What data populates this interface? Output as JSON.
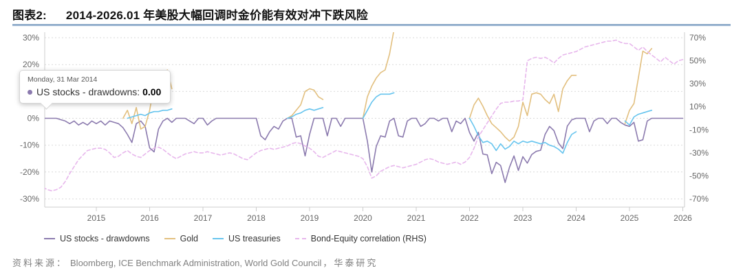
{
  "title": {
    "prefix": "图表2:",
    "text": "2014-2026.01 年美股大幅回调时金价能有效对冲下跌风险"
  },
  "tooltip": {
    "date": "Monday, 31 Mar 2014",
    "series_label": "US stocks - drawdowns:",
    "value": "0.00"
  },
  "legend": {
    "items": [
      {
        "label": "US stocks - drawdowns",
        "color_key": "us_stocks",
        "dash": false
      },
      {
        "label": "Gold",
        "color_key": "gold",
        "dash": false
      },
      {
        "label": "US treasuries",
        "color_key": "us_treasuries",
        "dash": false
      },
      {
        "label": "Bond-Equity correlation (RHS)",
        "color_key": "bond_equity",
        "dash": true
      }
    ]
  },
  "source": {
    "label": "资料来源：",
    "agencies": "Bloomberg, ICE Benchmark Administration, World Gold Council",
    "suffix": "，华泰研究"
  },
  "colors": {
    "us_stocks": "#8b7aae",
    "gold": "#e2bf7e",
    "us_treasuries": "#66c4ee",
    "bond_equity": "#e7b6ec",
    "grid": "#d9d9d9",
    "axis_line": "#cccccc",
    "axis_text": "#666666"
  },
  "chart_data": {
    "type": "line",
    "title": "2014-2026.01 年美股大幅回调时金价能有效对冲下跌风险",
    "x_axis": {
      "unit": "monthly",
      "start": "2014-01",
      "end": "2026-01",
      "years": [
        2015,
        2016,
        2017,
        2018,
        2019,
        2020,
        2021,
        2022,
        2023,
        2024,
        2025,
        2026
      ]
    },
    "left_axis": {
      "range": [
        -30,
        30
      ],
      "values": [
        30,
        20,
        10,
        0,
        -10,
        -20,
        -30
      ],
      "labels": [
        "30%",
        "20%",
        "10%",
        "0%",
        "-10%",
        "-20%",
        "-30%"
      ]
    },
    "right_axis": {
      "range": [
        -70,
        70
      ],
      "values": [
        70,
        50,
        30,
        10,
        -10,
        -30,
        -50,
        -70
      ],
      "labels": [
        "70%",
        "50%",
        "30%",
        "10%",
        "-10%",
        "-30%",
        "-50%",
        "-70%"
      ]
    },
    "grid": "dotted-horizontal",
    "legend_position": "bottom-left",
    "series": [
      {
        "name": "US stocks - drawdowns",
        "slug": "us-stocks-drawdowns",
        "axis": "left",
        "dash": false,
        "color_key": "us_stocks",
        "segments": [
          {
            "start_index": 0,
            "start_month": "2014-01",
            "values": [
              0,
              0,
              0,
              0,
              -0.5,
              -1,
              -2,
              -1,
              -2.5,
              -1.5,
              -2.5,
              -1,
              -2,
              -1,
              -2.5,
              -1,
              -1.5,
              -2,
              -3.5,
              -6,
              -9,
              -2,
              -1,
              -3,
              -11,
              -12.5,
              -4,
              -1,
              0,
              -1.5,
              0,
              0,
              0,
              -1,
              -2,
              0,
              0,
              -2.5,
              -1,
              0,
              0,
              0,
              0,
              0,
              0,
              0,
              0,
              0,
              0,
              -6.5,
              -8,
              -5,
              -3,
              -4,
              -1,
              0,
              0,
              -7,
              -6.5,
              -14,
              -6,
              0,
              0,
              0,
              -6.5,
              0,
              0,
              -3,
              0,
              0,
              0,
              0,
              0,
              -8.5,
              -20,
              -10.5,
              -6.5,
              -7,
              -1,
              0,
              -6.5,
              -7,
              -1,
              0,
              0,
              -3,
              -2,
              0,
              0,
              -1,
              0,
              0,
              -5,
              -1,
              -2,
              0,
              -5.3,
              -8.5,
              -5.2,
              -13.3,
              -13.6,
              -20.6,
              -16.4,
              -17.6,
              -23.9,
              -18.2,
              -14,
              -19.4,
              -14.3,
              -16.7,
              -13.5,
              -12.3,
              -11.9,
              -6,
              -3,
              -4.6,
              -9.2,
              -11.3,
              -2.9,
              -0.6,
              0,
              0,
              0,
              -5,
              -1,
              0,
              0,
              -2,
              0,
              0,
              -1.5,
              -2.5,
              -3,
              -1.5,
              -8.5,
              -8,
              -1,
              0,
              0,
              0,
              0,
              0,
              0,
              0,
              0
            ]
          }
        ]
      },
      {
        "name": "Gold",
        "slug": "gold",
        "axis": "left",
        "dash": false,
        "color_key": "gold",
        "segments": [
          {
            "start_index": 18,
            "start_month": "2015-07",
            "values": [
              0,
              3,
              -2,
              4,
              -4,
              -3,
              3,
              12,
              13,
              17,
              18,
              11
            ]
          },
          {
            "start_index": 55,
            "start_month": "2018-08",
            "values": [
              0,
              1,
              3,
              5,
              10,
              11,
              10.5,
              8,
              7
            ]
          },
          {
            "start_index": 72,
            "start_month": "2020-01",
            "values": [
              0,
              8,
              12,
              15,
              17,
              18,
              24,
              33
            ]
          },
          {
            "start_index": 96,
            "start_month": "2022-01",
            "values": [
              0,
              5,
              7.5,
              4.5,
              1,
              -2,
              -3.5,
              -5,
              -7,
              -8.5,
              -7,
              -3,
              6,
              1,
              9,
              9.5,
              9,
              7,
              5.5,
              9,
              2.5,
              11,
              14,
              16,
              16
            ]
          },
          {
            "start_index": 131,
            "start_month": "2024-12",
            "values": [
              -2,
              3,
              5.5,
              15,
              25,
              24,
              26
            ]
          }
        ]
      },
      {
        "name": "US treasuries",
        "slug": "us-treasuries",
        "axis": "left",
        "dash": false,
        "color_key": "us_treasuries",
        "segments": [
          {
            "start_index": 19,
            "start_month": "2015-08",
            "values": [
              0,
              0.5,
              1,
              1.5,
              1,
              2,
              2.5,
              2.5,
              3,
              3,
              3.5
            ]
          },
          {
            "start_index": 55,
            "start_month": "2018-08",
            "values": [
              0,
              0.5,
              1.5,
              2,
              3,
              3.5,
              3,
              3.5,
              4
            ]
          },
          {
            "start_index": 72,
            "start_month": "2020-01",
            "values": [
              0,
              3,
              6,
              8,
              9,
              9,
              9,
              9.5
            ]
          },
          {
            "start_index": 96,
            "start_month": "2022-01",
            "values": [
              0,
              -3,
              -6.5,
              -9,
              -8.5,
              -9.5,
              -12,
              -9.5,
              -11.5,
              -10.5,
              -8.5,
              -9.5,
              -8.5,
              -9,
              -8.5,
              -9,
              -9.5,
              -9,
              -10,
              -10.5,
              -11.5,
              -13,
              -9,
              -6,
              -5
            ]
          },
          {
            "start_index": 131,
            "start_month": "2024-12",
            "values": [
              -1,
              -2.5,
              0.5,
              1.5,
              2,
              2.5,
              3
            ]
          }
        ]
      },
      {
        "name": "Bond-Equity correlation (RHS)",
        "slug": "bond-equity-correlation",
        "axis": "right",
        "dash": true,
        "color_key": "bond_equity",
        "segments": [
          {
            "start_index": 0,
            "start_month": "2014-01",
            "values": [
              -60,
              -62,
              -63,
              -62,
              -60,
              -55,
              -48,
              -42,
              -36,
              -32,
              -28,
              -27,
              -26,
              -26,
              -27,
              -30,
              -34,
              -33,
              -30,
              -28,
              -31,
              -33,
              -34,
              -31,
              -28,
              -26,
              -25,
              -27,
              -30,
              -33,
              -35,
              -33,
              -31,
              -30,
              -29,
              -30,
              -30,
              -29,
              -30,
              -31,
              -32,
              -31,
              -30,
              -31,
              -33,
              -35,
              -36,
              -33,
              -30,
              -28,
              -27,
              -26,
              -27,
              -26,
              -25,
              -24,
              -22,
              -21,
              -22,
              -24,
              -26,
              -29,
              -33,
              -34,
              -32,
              -30,
              -28,
              -29,
              -30,
              -31,
              -32,
              -33,
              -35,
              -42,
              -52,
              -50,
              -46,
              -44,
              -42,
              -41,
              -42,
              -43,
              -42,
              -41,
              -40,
              -38,
              -36,
              -35,
              -36,
              -38,
              -39,
              -40,
              -39,
              -38,
              -40,
              -38,
              -34,
              -26,
              -16,
              -10,
              -4,
              2,
              8,
              13,
              14,
              14,
              15,
              15,
              16,
              50,
              52,
              53,
              52,
              53,
              51,
              48,
              52,
              55,
              56,
              57,
              58,
              60,
              62,
              63,
              64,
              65,
              66,
              67,
              67,
              68,
              66,
              65,
              65,
              62,
              59,
              62,
              58,
              55,
              52,
              49,
              53,
              50,
              47,
              50,
              51
            ]
          }
        ]
      }
    ]
  }
}
